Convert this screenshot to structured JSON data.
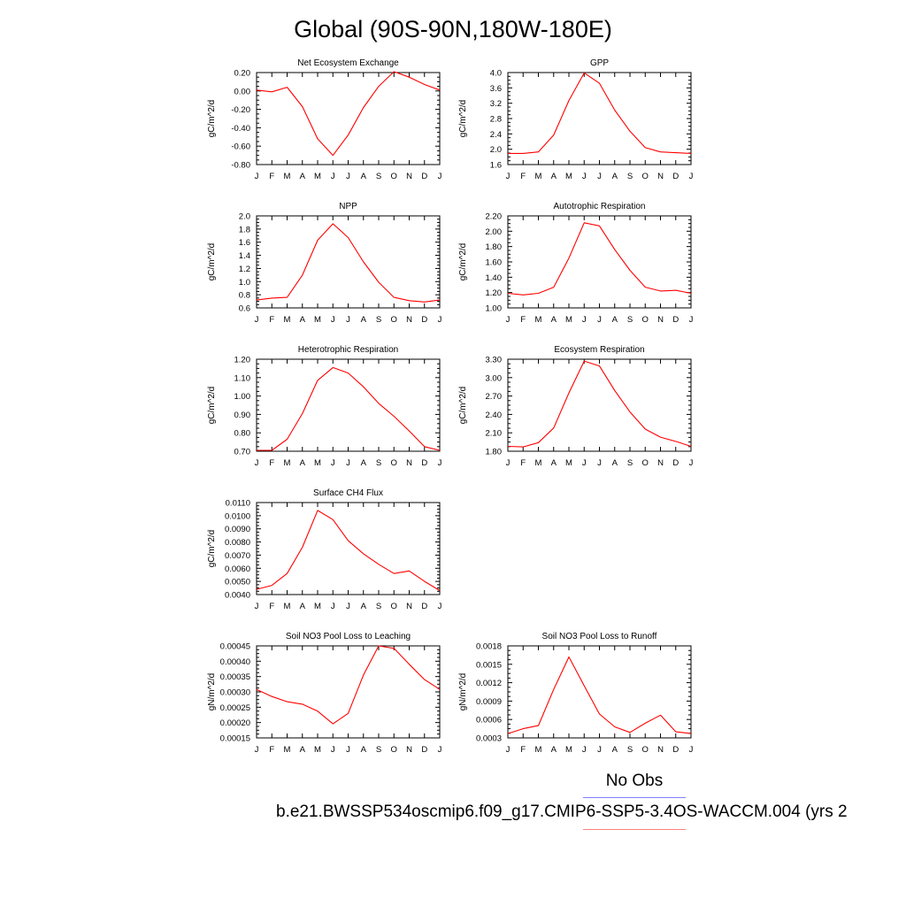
{
  "title": "Global (90S-90N,180W-180E)",
  "legend": {
    "label": "No Obs",
    "caption": "b.e21.BWSSP534oscmip6.f09_g17.CMIP6-SSP5-3.4OS-WACCM.004 (yrs 2"
  },
  "colors": {
    "series": "#ff0000",
    "legend_obs": "#8080ff",
    "legend_model": "#ff8080"
  },
  "chart_data": [
    {
      "type": "line",
      "title": "Net Ecosystem Exchange",
      "ylabel": "gC/m^2/d",
      "categories": [
        "J",
        "F",
        "M",
        "A",
        "M",
        "J",
        "J",
        "A",
        "S",
        "O",
        "N",
        "D",
        "J"
      ],
      "yticks": [
        "0.20",
        "0.00",
        "-0.20",
        "-0.40",
        "-0.60",
        "-0.80"
      ],
      "ylim": [
        -0.8,
        0.2
      ],
      "values": [
        0.01,
        -0.01,
        0.04,
        -0.17,
        -0.52,
        -0.7,
        -0.48,
        -0.18,
        0.05,
        0.21,
        0.15,
        0.07,
        0.01
      ]
    },
    {
      "type": "line",
      "title": "GPP",
      "ylabel": "gC/m^2/d",
      "categories": [
        "J",
        "F",
        "M",
        "A",
        "M",
        "J",
        "J",
        "A",
        "S",
        "O",
        "N",
        "D",
        "J"
      ],
      "yticks": [
        "4.0",
        "3.6",
        "3.2",
        "2.8",
        "2.4",
        "2.0",
        "1.6"
      ],
      "ylim": [
        1.6,
        4.0
      ],
      "values": [
        1.89,
        1.89,
        1.93,
        2.37,
        3.27,
        3.99,
        3.72,
        3.02,
        2.47,
        2.04,
        1.93,
        1.91,
        1.89
      ]
    },
    {
      "type": "line",
      "title": "NPP",
      "ylabel": "gC/m^2/d",
      "categories": [
        "J",
        "F",
        "M",
        "A",
        "M",
        "J",
        "J",
        "A",
        "S",
        "O",
        "N",
        "D",
        "J"
      ],
      "yticks": [
        "2.0",
        "1.8",
        "1.6",
        "1.4",
        "1.2",
        "1.0",
        "0.8",
        "0.6"
      ],
      "ylim": [
        0.6,
        2.0
      ],
      "values": [
        0.72,
        0.75,
        0.76,
        1.1,
        1.63,
        1.88,
        1.67,
        1.3,
        0.99,
        0.76,
        0.71,
        0.69,
        0.72
      ]
    },
    {
      "type": "line",
      "title": "Autotrophic Respiration",
      "ylabel": "gC/m^2/d",
      "categories": [
        "J",
        "F",
        "M",
        "A",
        "M",
        "J",
        "J",
        "A",
        "S",
        "O",
        "N",
        "D",
        "J"
      ],
      "yticks": [
        "2.20",
        "2.00",
        "1.80",
        "1.60",
        "1.40",
        "1.20",
        "1.00"
      ],
      "ylim": [
        1.0,
        2.2
      ],
      "values": [
        1.19,
        1.17,
        1.19,
        1.27,
        1.65,
        2.11,
        2.07,
        1.76,
        1.49,
        1.27,
        1.22,
        1.23,
        1.19
      ]
    },
    {
      "type": "line",
      "title": "Heterotrophic Respiration",
      "ylabel": "gC/m^2/d",
      "categories": [
        "J",
        "F",
        "M",
        "A",
        "M",
        "J",
        "J",
        "A",
        "S",
        "O",
        "N",
        "D",
        "J"
      ],
      "yticks": [
        "1.20",
        "1.10",
        "1.00",
        "0.90",
        "0.80",
        "0.70"
      ],
      "ylim": [
        0.7,
        1.2
      ],
      "values": [
        0.705,
        0.705,
        0.765,
        0.905,
        1.085,
        1.155,
        1.125,
        1.05,
        0.96,
        0.89,
        0.81,
        0.725,
        0.705
      ]
    },
    {
      "type": "line",
      "title": "Ecosystem Respiration",
      "ylabel": "gC/m^2/d",
      "categories": [
        "J",
        "F",
        "M",
        "A",
        "M",
        "J",
        "J",
        "A",
        "S",
        "O",
        "N",
        "D",
        "J"
      ],
      "yticks": [
        "3.30",
        "3.00",
        "2.70",
        "2.40",
        "2.10",
        "1.80"
      ],
      "ylim": [
        1.8,
        3.3
      ],
      "values": [
        1.88,
        1.87,
        1.94,
        2.18,
        2.75,
        3.27,
        3.19,
        2.79,
        2.44,
        2.16,
        2.03,
        1.96,
        1.88
      ]
    },
    {
      "type": "line",
      "title": "Surface CH4 Flux",
      "ylabel": "gC/m^2/d",
      "categories": [
        "J",
        "F",
        "M",
        "A",
        "M",
        "J",
        "J",
        "A",
        "S",
        "O",
        "N",
        "D",
        "J"
      ],
      "yticks": [
        "0.0110",
        "0.0100",
        "0.0090",
        "0.0080",
        "0.0070",
        "0.0060",
        "0.0050",
        "0.0040"
      ],
      "ylim": [
        0.004,
        0.011
      ],
      "values": [
        0.0044,
        0.0047,
        0.0056,
        0.0076,
        0.0104,
        0.0097,
        0.0081,
        0.0071,
        0.0063,
        0.0056,
        0.0058,
        0.005,
        0.0043
      ]
    },
    {
      "type": "line",
      "title": "Soil NO3 Pool Loss to Leaching",
      "ylabel": "gN/m^2/d",
      "categories": [
        "J",
        "F",
        "M",
        "A",
        "M",
        "J",
        "J",
        "A",
        "S",
        "O",
        "N",
        "D",
        "J"
      ],
      "yticks": [
        "0.00045",
        "0.00040",
        "0.00035",
        "0.00030",
        "0.00025",
        "0.00020",
        "0.00015"
      ],
      "ylim": [
        0.00015,
        0.00045
      ],
      "values": [
        0.000308,
        0.000285,
        0.000268,
        0.00026,
        0.000237,
        0.000196,
        0.00023,
        0.000355,
        0.00045,
        0.000442,
        0.00039,
        0.00034,
        0.000308
      ]
    },
    {
      "type": "line",
      "title": "Soil NO3 Pool Loss to Runoff",
      "ylabel": "gN/m^2/d",
      "categories": [
        "J",
        "F",
        "M",
        "A",
        "M",
        "J",
        "J",
        "A",
        "S",
        "O",
        "N",
        "D",
        "J"
      ],
      "yticks": [
        "0.0018",
        "0.0015",
        "0.0012",
        "0.0009",
        "0.0006",
        "0.0003"
      ],
      "ylim": [
        0.0003,
        0.0018
      ],
      "values": [
        0.00037,
        0.00045,
        0.0005,
        0.00109,
        0.00162,
        0.00115,
        0.00069,
        0.00048,
        0.00039,
        0.00054,
        0.00067,
        0.0004,
        0.00037
      ]
    }
  ]
}
